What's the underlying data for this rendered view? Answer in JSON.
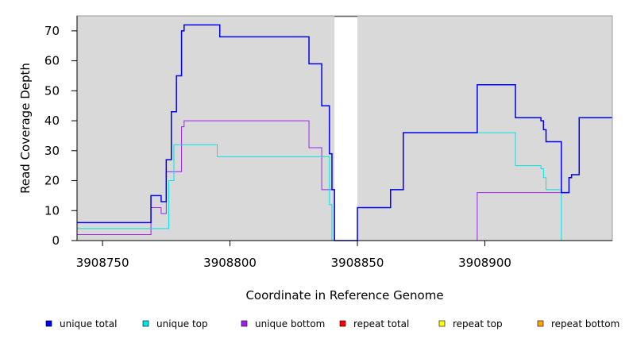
{
  "chart_data": {
    "type": "line",
    "step": true,
    "xlabel": "Coordinate in Reference Genome",
    "ylabel": "Read Coverage Depth",
    "xlim": [
      3908740,
      3908950
    ],
    "ylim": [
      0,
      75
    ],
    "x_ticks": [
      3908750,
      3908800,
      3908850,
      3908900
    ],
    "y_ticks": [
      0,
      10,
      20,
      30,
      40,
      50,
      60,
      70
    ],
    "grid": false,
    "background": "#d9d9d9",
    "gaps": [
      [
        3908841,
        3908850
      ]
    ],
    "legend_position": "bottom",
    "series": [
      {
        "name": "unique total",
        "color": "#0000ee",
        "width": 1.5,
        "points": [
          [
            3908740,
            6
          ],
          [
            3908769,
            6
          ],
          [
            3908769,
            15
          ],
          [
            3908773,
            15
          ],
          [
            3908773,
            13
          ],
          [
            3908775,
            13
          ],
          [
            3908775,
            27
          ],
          [
            3908777,
            27
          ],
          [
            3908777,
            43
          ],
          [
            3908779,
            43
          ],
          [
            3908779,
            55
          ],
          [
            3908781,
            55
          ],
          [
            3908781,
            70
          ],
          [
            3908782,
            70
          ],
          [
            3908782,
            72
          ],
          [
            3908796,
            72
          ],
          [
            3908796,
            68
          ],
          [
            3908831,
            68
          ],
          [
            3908831,
            59
          ],
          [
            3908836,
            59
          ],
          [
            3908836,
            45
          ],
          [
            3908839,
            45
          ],
          [
            3908839,
            29
          ],
          [
            3908840,
            29
          ],
          [
            3908840,
            17
          ],
          [
            3908841,
            17
          ],
          [
            3908841,
            0
          ],
          [
            3908850,
            0
          ],
          [
            3908850,
            11
          ],
          [
            3908863,
            11
          ],
          [
            3908863,
            17
          ],
          [
            3908868,
            17
          ],
          [
            3908868,
            36
          ],
          [
            3908897,
            36
          ],
          [
            3908897,
            52
          ],
          [
            3908912,
            52
          ],
          [
            3908912,
            41
          ],
          [
            3908922,
            41
          ],
          [
            3908922,
            40
          ],
          [
            3908923,
            40
          ],
          [
            3908923,
            37
          ],
          [
            3908924,
            37
          ],
          [
            3908924,
            33
          ],
          [
            3908930,
            33
          ],
          [
            3908930,
            16
          ],
          [
            3908933,
            16
          ],
          [
            3908933,
            21
          ],
          [
            3908934,
            21
          ],
          [
            3908934,
            22
          ],
          [
            3908937,
            22
          ],
          [
            3908937,
            41
          ],
          [
            3908950,
            41
          ]
        ]
      },
      {
        "name": "unique top",
        "color": "#00e5e5",
        "width": 1,
        "points": [
          [
            3908740,
            4
          ],
          [
            3908776,
            4
          ],
          [
            3908776,
            20
          ],
          [
            3908778,
            20
          ],
          [
            3908778,
            32
          ],
          [
            3908795,
            32
          ],
          [
            3908795,
            28
          ],
          [
            3908839,
            28
          ],
          [
            3908839,
            12
          ],
          [
            3908840,
            12
          ],
          [
            3908840,
            0
          ],
          [
            3908850,
            0
          ],
          [
            3908850,
            11
          ],
          [
            3908863,
            11
          ],
          [
            3908863,
            17
          ],
          [
            3908868,
            17
          ],
          [
            3908868,
            36
          ],
          [
            3908912,
            36
          ],
          [
            3908912,
            25
          ],
          [
            3908922,
            25
          ],
          [
            3908922,
            24
          ],
          [
            3908923,
            24
          ],
          [
            3908923,
            21
          ],
          [
            3908924,
            21
          ],
          [
            3908924,
            17
          ],
          [
            3908930,
            17
          ],
          [
            3908930,
            0
          ],
          [
            3908950,
            0
          ]
        ]
      },
      {
        "name": "unique bottom",
        "color": "#a020f0",
        "width": 1,
        "points": [
          [
            3908740,
            2
          ],
          [
            3908769,
            2
          ],
          [
            3908769,
            11
          ],
          [
            3908773,
            11
          ],
          [
            3908773,
            9
          ],
          [
            3908775,
            9
          ],
          [
            3908775,
            23
          ],
          [
            3908781,
            23
          ],
          [
            3908781,
            38
          ],
          [
            3908782,
            38
          ],
          [
            3908782,
            40
          ],
          [
            3908831,
            40
          ],
          [
            3908831,
            31
          ],
          [
            3908836,
            31
          ],
          [
            3908836,
            17
          ],
          [
            3908841,
            17
          ],
          [
            3908841,
            0
          ],
          [
            3908897,
            0
          ],
          [
            3908897,
            16
          ],
          [
            3908933,
            16
          ],
          [
            3908933,
            21
          ],
          [
            3908934,
            21
          ],
          [
            3908934,
            22
          ],
          [
            3908937,
            22
          ],
          [
            3908937,
            41
          ],
          [
            3908950,
            41
          ]
        ]
      },
      {
        "name": "repeat total",
        "color": "#ff0000",
        "width": 1,
        "points": [
          [
            3908740,
            0
          ],
          [
            3908950,
            0
          ]
        ]
      },
      {
        "name": "repeat top",
        "color": "#ffff00",
        "width": 1,
        "points": [
          [
            3908740,
            0
          ],
          [
            3908950,
            0
          ]
        ]
      },
      {
        "name": "repeat bottom",
        "color": "#ffa500",
        "width": 1,
        "points": [
          [
            3908740,
            0
          ],
          [
            3908950,
            0
          ]
        ]
      }
    ]
  }
}
